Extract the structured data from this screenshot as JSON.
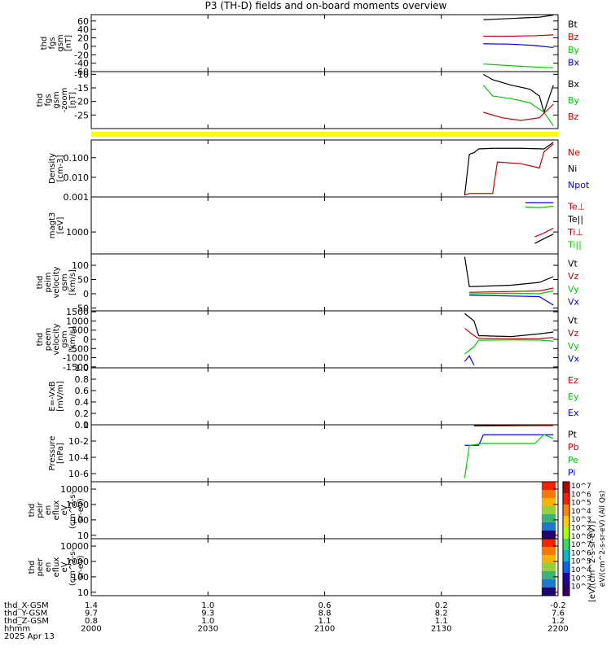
{
  "title": "P3 (TH-D) fields and on-board moments overview",
  "colors": {
    "black": "#000000",
    "red": "#cc0000",
    "green": "#00cc00",
    "blue": "#0000ee",
    "yellow": "#ffff00"
  },
  "chart_data": [
    {
      "type": "line",
      "ylabel": [
        "thd",
        "fgs",
        "gsm",
        "[nT]"
      ],
      "ylim": [
        -60,
        75
      ],
      "ticks": [
        "60",
        "40",
        "20",
        "0",
        "-20",
        "-40",
        "-60"
      ],
      "tickvals": [
        60,
        40,
        20,
        0,
        -20,
        -40,
        -60
      ],
      "legend": [
        "Bt",
        "Bz",
        "By",
        "Bx"
      ],
      "legend_colors": [
        "black",
        "red",
        "green",
        "blue"
      ],
      "series": [
        {
          "color": "black",
          "x": [
            0.84,
            0.88,
            0.92,
            0.96,
            0.99
          ],
          "y": [
            63,
            65,
            67,
            69,
            74
          ]
        },
        {
          "color": "red",
          "x": [
            0.84,
            0.9,
            0.95,
            0.99
          ],
          "y": [
            24,
            24,
            25,
            27
          ]
        },
        {
          "color": "blue",
          "x": [
            0.84,
            0.9,
            0.95,
            0.99
          ],
          "y": [
            6,
            5,
            2,
            -3
          ]
        },
        {
          "color": "green",
          "x": [
            0.84,
            0.9,
            0.95,
            0.99
          ],
          "y": [
            -42,
            -46,
            -49,
            -51
          ]
        }
      ]
    },
    {
      "type": "line",
      "ylabel": [
        "thd",
        "fgs",
        "gsm",
        "-zoom",
        "[nT]"
      ],
      "ylim": [
        -30,
        -9
      ],
      "ticks": [
        "-10",
        "-15",
        "-20",
        "-25"
      ],
      "tickvals": [
        -10,
        -15,
        -20,
        -25
      ],
      "legend": [
        "Bx",
        "By",
        "Bz"
      ],
      "legend_colors": [
        "black",
        "green",
        "red"
      ],
      "series": [
        {
          "color": "black",
          "x": [
            0.84,
            0.86,
            0.9,
            0.94,
            0.96,
            0.97,
            0.99
          ],
          "y": [
            -10,
            -12,
            -14,
            -15.5,
            -18,
            -24,
            -14
          ]
        },
        {
          "color": "green",
          "x": [
            0.84,
            0.86,
            0.9,
            0.94,
            0.97,
            0.99
          ],
          "y": [
            -14,
            -18,
            -19,
            -20.5,
            -24,
            -29
          ]
        },
        {
          "color": "red",
          "x": [
            0.84,
            0.88,
            0.92,
            0.96,
            0.99
          ],
          "y": [
            -24,
            -26,
            -27,
            -26,
            -21
          ]
        }
      ]
    },
    {
      "type": "line",
      "ylabel": [
        "Density",
        "[cm-3]"
      ],
      "yscale": "log",
      "ylim": [
        0.001,
        0.8
      ],
      "ticks": [
        "0.100",
        "0.010",
        "0.001"
      ],
      "tickvals": [
        0.1,
        0.01,
        0.001
      ],
      "legend": [
        "Ne",
        "Ni",
        "Npot"
      ],
      "legend_colors": [
        "red",
        "black",
        "blue"
      ],
      "series": [
        {
          "color": "black",
          "x": [
            0.8,
            0.81,
            0.82,
            0.83,
            0.86,
            0.92,
            0.97,
            0.99
          ],
          "y": [
            0.0012,
            0.15,
            0.18,
            0.28,
            0.3,
            0.3,
            0.28,
            0.6
          ]
        },
        {
          "color": "red",
          "x": [
            0.8,
            0.81,
            0.86,
            0.87,
            0.92,
            0.96,
            0.97,
            0.99
          ],
          "y": [
            0.0012,
            0.0015,
            0.0015,
            0.06,
            0.05,
            0.03,
            0.2,
            0.5
          ]
        }
      ]
    },
    {
      "type": "line",
      "ylabel": [
        "magt3",
        "[eV]"
      ],
      "yscale": "log",
      "ylim": [
        100,
        40000
      ],
      "ticks": [
        "1000"
      ],
      "tickvals": [
        1000
      ],
      "legend": [
        "Te⊥",
        "Te||",
        "Ti⊥",
        "Ti||"
      ],
      "legend_colors": [
        "red",
        "black",
        "red",
        "green"
      ],
      "series": [
        {
          "color": "blue",
          "x": [
            0.93,
            0.96,
            0.99
          ],
          "y": [
            22000,
            22000,
            22000
          ]
        },
        {
          "color": "green",
          "x": [
            0.93,
            0.96,
            0.99
          ],
          "y": [
            14000,
            13000,
            15000
          ]
        },
        {
          "color": "black",
          "x": [
            0.95,
            0.97,
            0.99
          ],
          "y": [
            300,
            500,
            800
          ]
        },
        {
          "color": "red",
          "x": [
            0.95,
            0.97,
            0.99
          ],
          "y": [
            600,
            900,
            1500
          ]
        }
      ]
    },
    {
      "type": "line",
      "ylabel": [
        "thd",
        "peim",
        "velocity",
        "gsm",
        "[km/s]"
      ],
      "ylim": [
        -60,
        140
      ],
      "ticks": [
        "100",
        "50",
        "0",
        "-50"
      ],
      "tickvals": [
        100,
        50,
        0,
        -50
      ],
      "legend": [
        "Vt",
        "Vz",
        "Vy",
        "Vx"
      ],
      "legend_colors": [
        "black",
        "red",
        "green",
        "blue"
      ],
      "series": [
        {
          "color": "black",
          "x": [
            0.8,
            0.81,
            0.9,
            0.96,
            0.99
          ],
          "y": [
            130,
            25,
            30,
            40,
            60
          ]
        },
        {
          "color": "red",
          "x": [
            0.81,
            0.9,
            0.96,
            0.99
          ],
          "y": [
            5,
            8,
            10,
            20
          ]
        },
        {
          "color": "green",
          "x": [
            0.81,
            0.9,
            0.96,
            0.99
          ],
          "y": [
            0,
            2,
            0,
            10
          ]
        },
        {
          "color": "blue",
          "x": [
            0.81,
            0.9,
            0.96,
            0.99
          ],
          "y": [
            -5,
            -8,
            -10,
            -40
          ]
        }
      ]
    },
    {
      "type": "line",
      "ylabel": [
        "thd",
        "peem",
        "velocity",
        "gsm",
        "[km/s]"
      ],
      "ylim": [
        -1550,
        1550
      ],
      "ticks": [
        "1500",
        "1000",
        "500",
        "0",
        "-500",
        "-1000",
        "-1500"
      ],
      "tickvals": [
        1500,
        1000,
        500,
        0,
        -500,
        -1000,
        -1500
      ],
      "legend": [
        "Vt",
        "Vz",
        "Vy",
        "Vx"
      ],
      "legend_colors": [
        "black",
        "red",
        "green",
        "blue"
      ],
      "series": [
        {
          "color": "black",
          "x": [
            0.8,
            0.82,
            0.83,
            0.9,
            0.96,
            0.99
          ],
          "y": [
            1400,
            1000,
            200,
            150,
            300,
            400
          ]
        },
        {
          "color": "red",
          "x": [
            0.8,
            0.82,
            0.83,
            0.9,
            0.96,
            0.99
          ],
          "y": [
            600,
            200,
            50,
            30,
            40,
            100
          ]
        },
        {
          "color": "green",
          "x": [
            0.8,
            0.82,
            0.83,
            0.9,
            0.96,
            0.99
          ],
          "y": [
            -800,
            -400,
            -50,
            -30,
            -40,
            -100
          ]
        },
        {
          "color": "blue",
          "x": [
            0.8,
            0.81,
            0.82
          ],
          "y": [
            -1200,
            -900,
            -1400
          ]
        }
      ]
    },
    {
      "type": "line",
      "ylabel": [
        "E=-VxB",
        "[mV/m]"
      ],
      "ylim": [
        0,
        1
      ],
      "ticks": [
        "1.0",
        "0.8",
        "0.6",
        "0.4",
        "0.2",
        "0.0"
      ],
      "tickvals": [
        1,
        0.8,
        0.6,
        0.4,
        0.2,
        0
      ],
      "legend": [
        "Ez",
        "Ey",
        "Ex"
      ],
      "legend_colors": [
        "red",
        "green",
        "blue"
      ],
      "series": []
    },
    {
      "type": "line",
      "ylabel": [
        "Pressure",
        "[nPa]"
      ],
      "yscale": "log",
      "ylim": [
        1e-07,
        1
      ],
      "ticks": [
        "1",
        "10-2",
        "10-4",
        "10-6"
      ],
      "tickvals": [
        1,
        0.01,
        0.0001,
        1e-06
      ],
      "legend": [
        "Pt",
        "Pb",
        "Pe",
        "Pi"
      ],
      "legend_colors": [
        "black",
        "red",
        "green",
        "blue"
      ],
      "series": [
        {
          "color": "black",
          "x": [
            0.82,
            0.9,
            0.99
          ],
          "y": [
            0.8,
            0.8,
            0.9
          ]
        },
        {
          "color": "red",
          "x": [
            0.82,
            0.9,
            0.99
          ],
          "y": [
            0.7,
            0.75,
            0.8
          ]
        },
        {
          "color": "blue",
          "x": [
            0.8,
            0.81,
            0.83,
            0.84,
            0.95,
            0.99
          ],
          "y": [
            0.003,
            0.003,
            0.003,
            0.06,
            0.06,
            0.06
          ]
        },
        {
          "color": "green",
          "x": [
            0.8,
            0.81,
            0.84,
            0.95,
            0.97,
            0.99
          ],
          "y": [
            3e-07,
            0.003,
            0.005,
            0.005,
            0.06,
            0.02
          ]
        }
      ]
    },
    {
      "type": "heatmap",
      "ylabel": [
        "thd",
        "peir",
        "en",
        "eflux",
        "eV",
        "(cm^2-s-",
        "sr-eV)"
      ],
      "yscale": "log",
      "ylim": [
        6,
        30000
      ],
      "ticks": [
        "10000",
        "1000",
        "100",
        "10"
      ],
      "tickvals": [
        10000,
        1000,
        100,
        10
      ]
    },
    {
      "type": "heatmap",
      "ylabel": [
        "thd",
        "peer",
        "en",
        "eflux",
        "eV",
        "(cm^2-s-",
        "sr-eV)"
      ],
      "yscale": "log",
      "ylim": [
        6,
        30000
      ],
      "ticks": [
        "10000",
        "1000",
        "100",
        "10"
      ],
      "tickvals": [
        10000,
        1000,
        100,
        10
      ]
    }
  ],
  "colorbar": {
    "ticks": [
      "10^7",
      "10^6",
      "10^5",
      "10^4",
      "10^3",
      "10^2",
      "10^8",
      "10^7",
      "10^6",
      "10^5",
      "10^4",
      "10^3",
      "10^2"
    ],
    "label1": "eV/(cm^2-s-sr-eV) (All Qs)",
    "label2": "[eV/(cm^2-s-sr-eV)]"
  },
  "xaxis": {
    "rows": [
      {
        "label": "thd_X-GSM",
        "values": [
          "1.4",
          "1.0",
          "0.6",
          "0.2",
          "-0.2"
        ]
      },
      {
        "label": "thd_Y-GSM",
        "values": [
          "9.7",
          "9.3",
          "8.8",
          "8.2",
          "7.6"
        ]
      },
      {
        "label": "thd_Z-GSM",
        "values": [
          "0.8",
          "1.0",
          "1.1",
          "1.1",
          "1.2"
        ]
      },
      {
        "label": "hhmm",
        "values": [
          "2000",
          "2030",
          "2100",
          "2130",
          "2200"
        ]
      }
    ],
    "date": "2025 Apr 13"
  }
}
